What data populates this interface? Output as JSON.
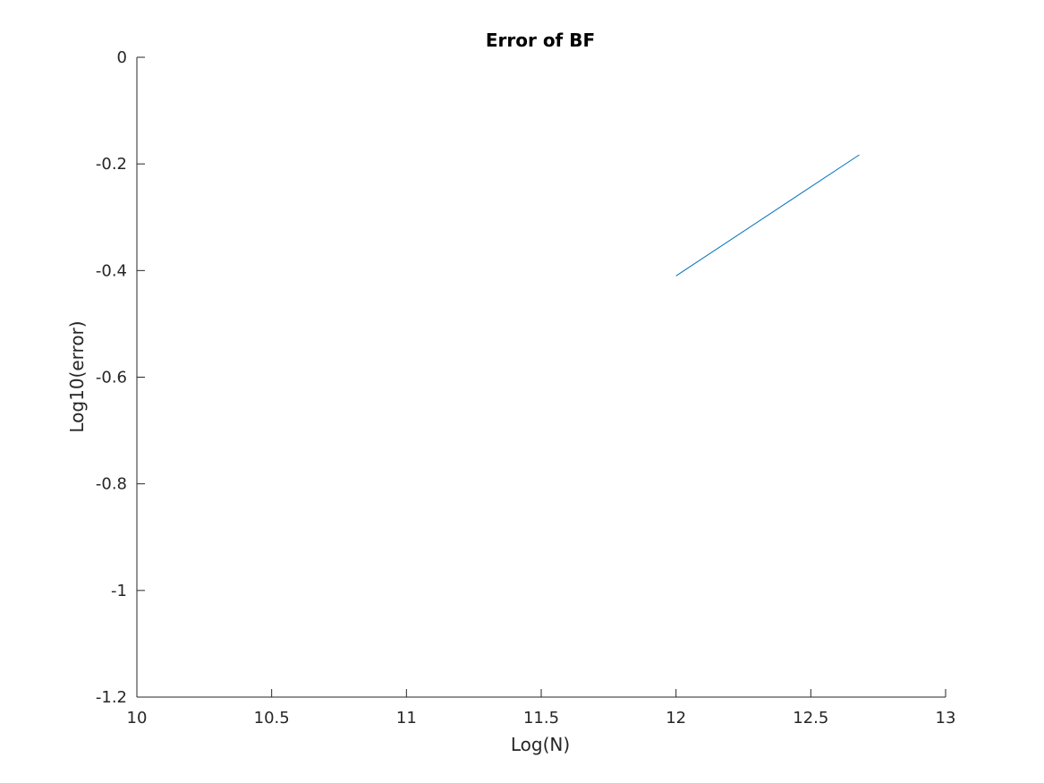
{
  "chart_data": {
    "type": "line",
    "title": "Error of BF",
    "xlabel": "Log(N)",
    "ylabel": "Log10(error)",
    "xlim": [
      10,
      13
    ],
    "ylim": [
      -1.2,
      0
    ],
    "xticks": [
      "10",
      "10.5",
      "11",
      "11.5",
      "12",
      "12.5",
      "13"
    ],
    "yticks": [
      "0",
      "-0.2",
      "-0.4",
      "-0.6",
      "-0.8",
      "-1",
      "-1.2"
    ],
    "grid": false,
    "series": [
      {
        "x": [
          12.0,
          12.68
        ],
        "y": [
          -0.41,
          -0.183
        ],
        "color": "#0072bd"
      }
    ]
  },
  "colors": {
    "axis": "#262626",
    "series": "#0072bd"
  }
}
